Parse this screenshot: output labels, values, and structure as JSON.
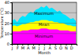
{
  "chart_data": {
    "type": "area",
    "y_label": "Temperature (°C)",
    "x_label": "Month",
    "x": [
      1,
      16,
      31,
      46,
      61,
      76,
      91,
      106,
      121,
      136,
      151,
      166,
      181,
      196,
      211,
      226,
      241,
      256,
      271,
      286,
      301,
      316,
      331,
      346,
      361
    ],
    "series": [
      {
        "name": "Maximum",
        "color": "#00e5ff",
        "values": [
          22,
          24,
          21,
          25,
          27,
          26,
          29,
          31,
          30,
          33,
          34,
          36,
          35,
          37,
          34,
          35,
          33,
          31,
          32,
          29,
          28,
          26,
          24,
          25,
          22
        ]
      },
      {
        "name": "Mean",
        "color": "#ffff00",
        "values": [
          17,
          18,
          17,
          18,
          19,
          19,
          20,
          21,
          21,
          22,
          22,
          23,
          23,
          23,
          22,
          22,
          21,
          21,
          20,
          20,
          19,
          18,
          18,
          17,
          17
        ]
      },
      {
        "name": "Minimum",
        "color": "#ff00ff",
        "values": [
          12,
          12,
          12,
          12,
          13,
          13,
          13,
          14,
          14,
          14,
          14,
          15,
          15,
          15,
          14,
          14,
          14,
          14,
          13,
          13,
          13,
          13,
          12,
          12,
          12
        ]
      }
    ],
    "xlim": [
      1,
      365
    ],
    "xticks": [
      {
        "value": 1,
        "label": "J"
      },
      {
        "value": 32,
        "label": "F"
      },
      {
        "value": 60,
        "label": "M"
      },
      {
        "value": 91,
        "label": "A"
      },
      {
        "value": 121,
        "label": "M"
      },
      {
        "value": 152,
        "label": "J"
      },
      {
        "value": 182,
        "label": "J"
      },
      {
        "value": 213,
        "label": "A"
      },
      {
        "value": 244,
        "label": "S"
      },
      {
        "value": 274,
        "label": "O"
      },
      {
        "value": 305,
        "label": "N"
      },
      {
        "value": 335,
        "label": "D"
      }
    ],
    "ylim": [
      0,
      40
    ],
    "yticks": [
      0,
      10,
      20,
      30,
      40
    ],
    "grid": true
  }
}
